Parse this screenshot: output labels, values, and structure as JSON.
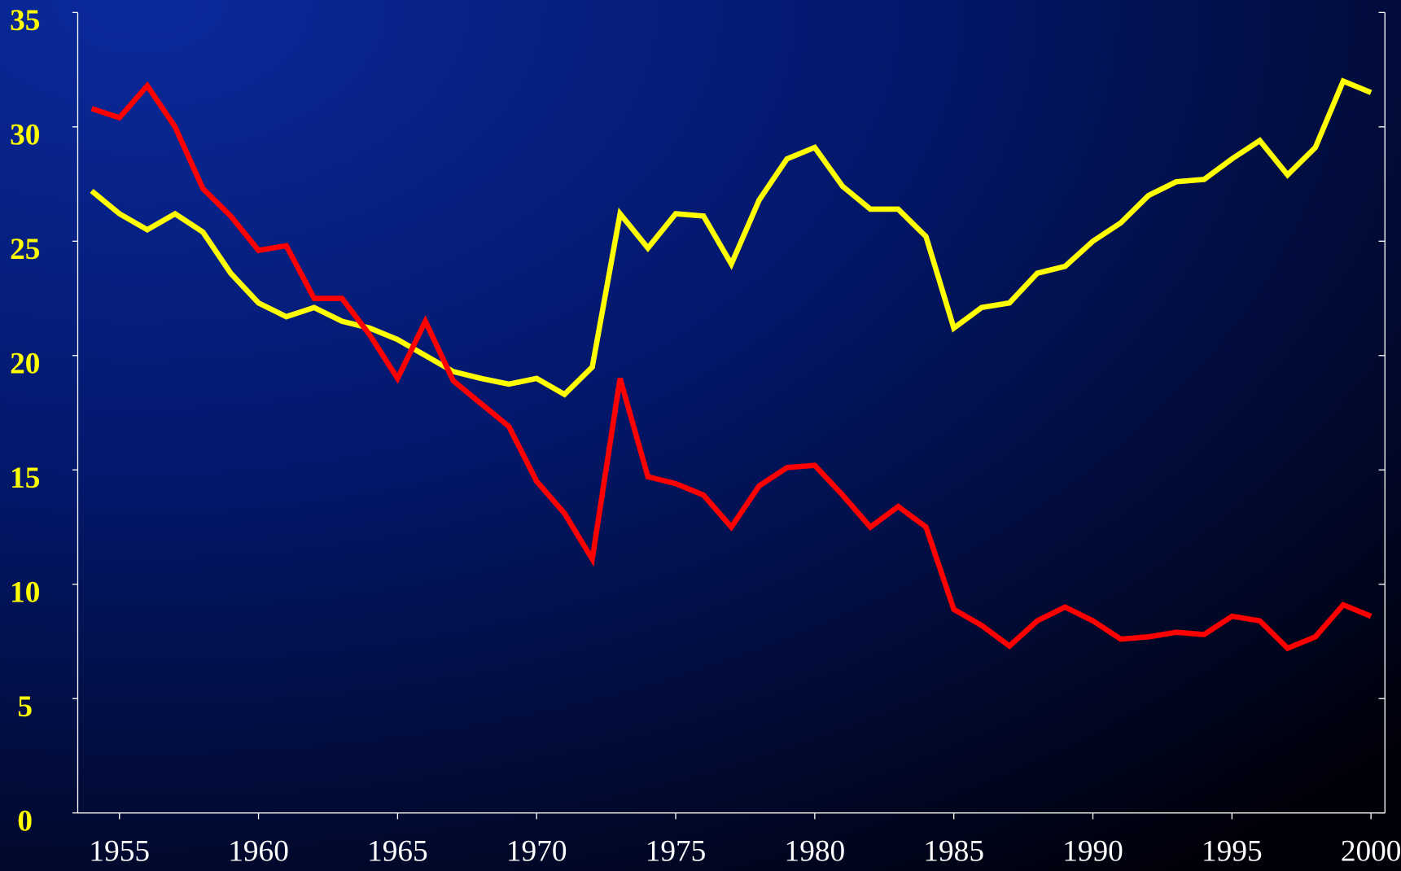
{
  "chart_data": {
    "type": "line",
    "x": [
      1954,
      1955,
      1956,
      1957,
      1958,
      1959,
      1960,
      1961,
      1962,
      1963,
      1964,
      1965,
      1966,
      1967,
      1968,
      1969,
      1970,
      1971,
      1972,
      1973,
      1974,
      1975,
      1976,
      1977,
      1978,
      1979,
      1980,
      1981,
      1982,
      1983,
      1984,
      1985,
      1986,
      1987,
      1988,
      1989,
      1990,
      1991,
      1992,
      1993,
      1994,
      1995,
      1996,
      1997,
      1998,
      1999,
      2000
    ],
    "series": [
      {
        "color": "#ffff00",
        "values": [
          27.2,
          26.2,
          25.5,
          26.2,
          25.4,
          23.6,
          22.3,
          21.7,
          22.1,
          21.5,
          21.2,
          20.7,
          20.0,
          19.3,
          19.0,
          18.75,
          19.0,
          18.3,
          19.5,
          26.2,
          24.7,
          26.2,
          26.1,
          24.0,
          26.8,
          28.6,
          29.1,
          27.4,
          26.4,
          26.4,
          25.2,
          21.2,
          22.1,
          22.3,
          23.6,
          23.9,
          25.0,
          25.8,
          27.0,
          27.6,
          27.7,
          28.6,
          29.4,
          27.9,
          29.1,
          32.0,
          31.5
        ]
      },
      {
        "color": "#ff0000",
        "values": [
          30.8,
          30.4,
          31.8,
          30.0,
          27.3,
          26.1,
          24.6,
          24.8,
          22.5,
          22.5,
          20.9,
          19.0,
          21.5,
          18.9,
          17.9,
          16.9,
          14.5,
          13.1,
          11.1,
          19.0,
          14.7,
          14.4,
          13.9,
          12.5,
          14.3,
          15.1,
          15.2,
          13.9,
          12.5,
          13.4,
          12.5,
          8.9,
          8.2,
          7.3,
          8.4,
          9.0,
          8.4,
          7.6,
          7.7,
          7.9,
          7.8,
          8.6,
          8.4,
          7.2,
          7.7,
          9.1,
          8.6
        ]
      }
    ],
    "xlim": [
      1953.5,
      2000.5
    ],
    "xticks": [
      1955,
      1960,
      1965,
      1970,
      1975,
      1980,
      1985,
      1990,
      1995,
      2000
    ],
    "ylim": [
      0,
      35
    ],
    "yticks": [
      0,
      5,
      10,
      15,
      20,
      25,
      30,
      35
    ]
  }
}
